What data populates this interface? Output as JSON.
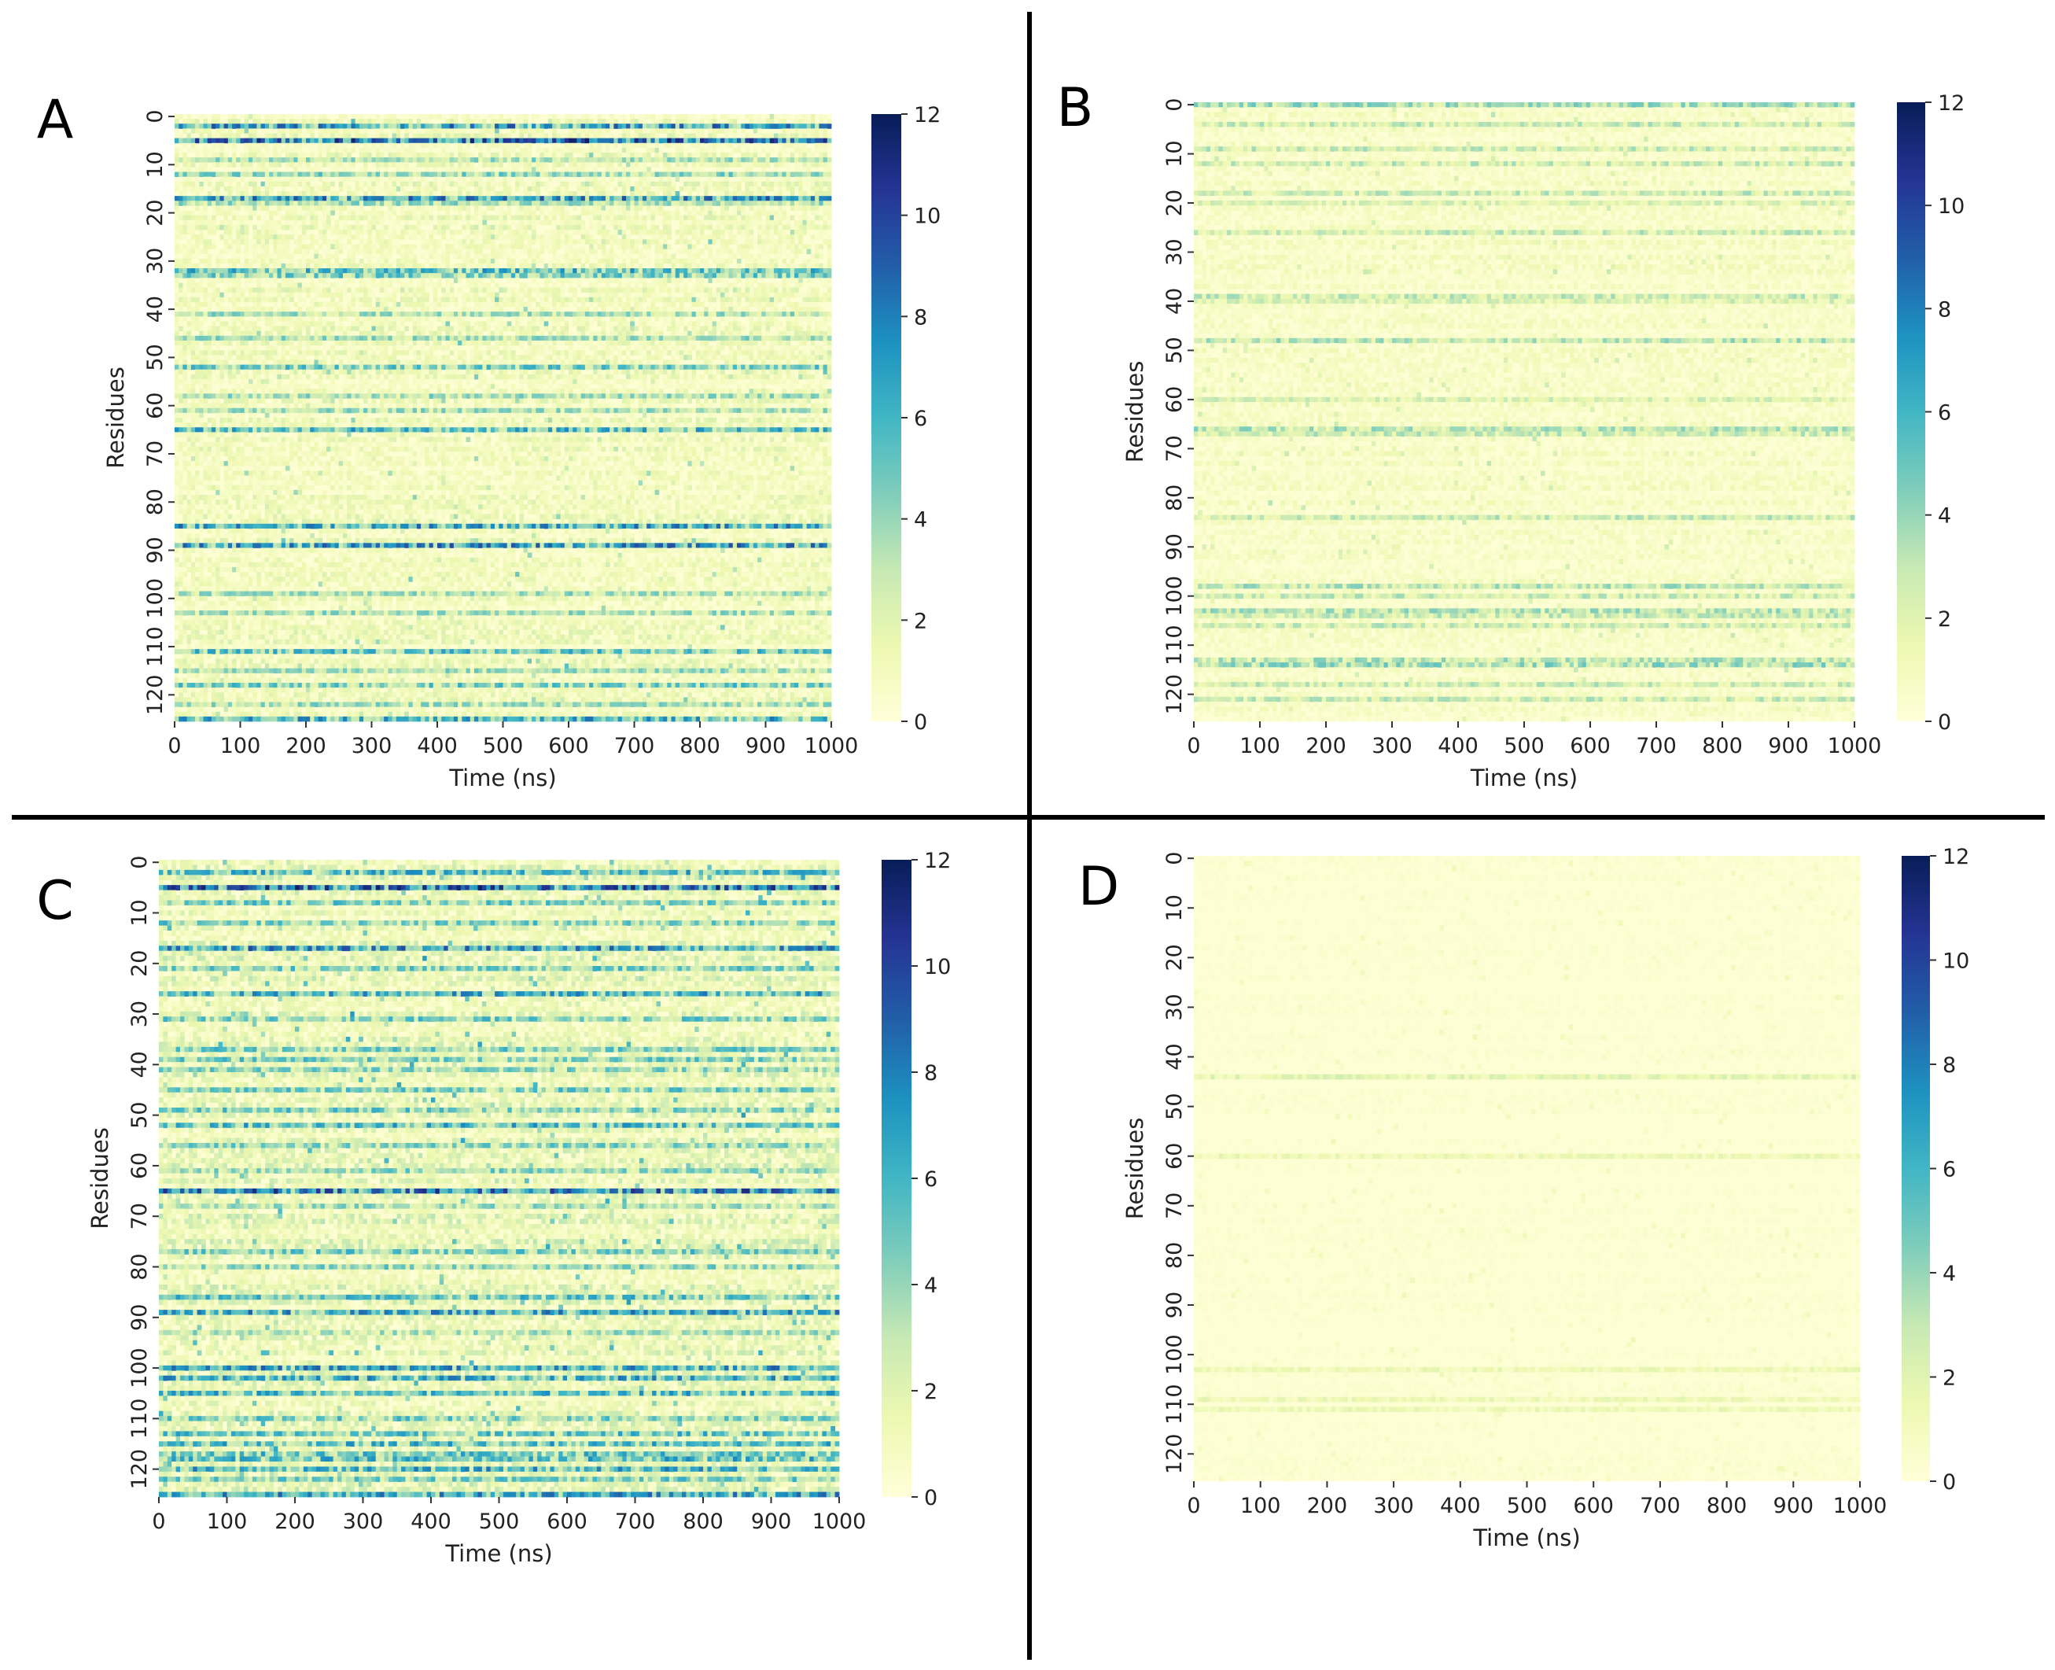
{
  "figure": {
    "colorbar_stops": [
      "#ffffd9",
      "#edf8b1",
      "#c7e9b4",
      "#7fcdbb",
      "#41b6c4",
      "#1d91c0",
      "#225ea8",
      "#253494",
      "#081d58"
    ],
    "divider_color": "#000000"
  },
  "chart_data": [
    {
      "type": "heatmap",
      "panel_label": "A",
      "title": "",
      "xlabel": "Time (ns)",
      "ylabel": "Residues",
      "x_ticks": [
        0,
        100,
        200,
        300,
        400,
        500,
        600,
        700,
        800,
        900,
        1000
      ],
      "y_ticks": [
        0,
        10,
        20,
        30,
        40,
        50,
        60,
        70,
        80,
        90,
        100,
        110,
        120
      ],
      "xlim": [
        0,
        1000
      ],
      "n_residues": 126,
      "colorbar": {
        "ticks": [
          0,
          2,
          4,
          6,
          8,
          10,
          12
        ],
        "range": [
          0,
          12
        ],
        "colormap": "YlGnBu"
      },
      "background_level": 1.1,
      "hot_rows": [
        [
          2,
          7.5
        ],
        [
          5,
          9
        ],
        [
          9,
          4
        ],
        [
          12,
          4.5
        ],
        [
          17,
          7.5
        ],
        [
          18,
          4
        ],
        [
          32,
          6
        ],
        [
          33,
          5
        ],
        [
          41,
          4
        ],
        [
          46,
          4
        ],
        [
          52,
          5
        ],
        [
          58,
          4
        ],
        [
          61,
          4
        ],
        [
          65,
          6
        ],
        [
          85,
          7
        ],
        [
          89,
          7.5
        ],
        [
          99,
          4
        ],
        [
          103,
          4
        ],
        [
          111,
          5.5
        ],
        [
          115,
          4
        ],
        [
          118,
          5
        ],
        [
          122,
          4
        ],
        [
          125,
          6.5
        ]
      ]
    },
    {
      "type": "heatmap",
      "panel_label": "B",
      "title": "",
      "xlabel": "Time (ns)",
      "ylabel": "Residues",
      "x_ticks": [
        0,
        100,
        200,
        300,
        400,
        500,
        600,
        700,
        800,
        900,
        1000
      ],
      "y_ticks": [
        0,
        10,
        20,
        30,
        40,
        50,
        60,
        70,
        80,
        90,
        100,
        110,
        120
      ],
      "xlim": [
        0,
        1000
      ],
      "n_residues": 126,
      "colorbar": {
        "ticks": [
          0,
          2,
          4,
          6,
          8,
          10,
          12
        ],
        "range": [
          0,
          12
        ],
        "colormap": "YlGnBu"
      },
      "background_level": 0.7,
      "hot_rows": [
        [
          0,
          4
        ],
        [
          4,
          3
        ],
        [
          9,
          3
        ],
        [
          12,
          3
        ],
        [
          18,
          3
        ],
        [
          20,
          2.5
        ],
        [
          26,
          3
        ],
        [
          39,
          3
        ],
        [
          40,
          2.5
        ],
        [
          48,
          3.5
        ],
        [
          60,
          2.5
        ],
        [
          66,
          3.5
        ],
        [
          67,
          3
        ],
        [
          84,
          3
        ],
        [
          98,
          3.5
        ],
        [
          100,
          3
        ],
        [
          103,
          3.5
        ],
        [
          104,
          3
        ],
        [
          106,
          3
        ],
        [
          113,
          3.5
        ],
        [
          114,
          4
        ],
        [
          118,
          3
        ],
        [
          121,
          3
        ]
      ]
    },
    {
      "type": "heatmap",
      "panel_label": "C",
      "title": "",
      "xlabel": "Time (ns)",
      "ylabel": "Residues",
      "x_ticks": [
        0,
        100,
        200,
        300,
        400,
        500,
        600,
        700,
        800,
        900,
        1000
      ],
      "y_ticks": [
        0,
        10,
        20,
        30,
        40,
        50,
        60,
        70,
        80,
        90,
        100,
        110,
        120
      ],
      "xlim": [
        0,
        1000
      ],
      "n_residues": 126,
      "colorbar": {
        "ticks": [
          0,
          2,
          4,
          6,
          8,
          10,
          12
        ],
        "range": [
          0,
          12
        ],
        "colormap": "YlGnBu"
      },
      "background_level": 1.5,
      "hot_rows": [
        [
          2,
          6
        ],
        [
          5,
          9
        ],
        [
          8,
          5
        ],
        [
          12,
          5
        ],
        [
          17,
          7.5
        ],
        [
          21,
          5
        ],
        [
          26,
          6.5
        ],
        [
          31,
          5
        ],
        [
          37,
          5
        ],
        [
          39,
          5
        ],
        [
          41,
          4.5
        ],
        [
          45,
          5
        ],
        [
          49,
          5
        ],
        [
          52,
          6
        ],
        [
          56,
          4.5
        ],
        [
          61,
          4.5
        ],
        [
          65,
          8.5
        ],
        [
          68,
          4
        ],
        [
          77,
          5
        ],
        [
          80,
          4.5
        ],
        [
          86,
          5.5
        ],
        [
          89,
          7
        ],
        [
          93,
          4
        ],
        [
          100,
          7
        ],
        [
          102,
          6.5
        ],
        [
          105,
          6
        ],
        [
          110,
          5
        ],
        [
          113,
          5.5
        ],
        [
          115,
          6
        ],
        [
          117,
          5.5
        ],
        [
          118,
          6
        ],
        [
          120,
          6.5
        ],
        [
          122,
          5
        ],
        [
          125,
          7
        ]
      ]
    },
    {
      "type": "heatmap",
      "panel_label": "D",
      "title": "",
      "xlabel": "Time (ns)",
      "ylabel": "Residues",
      "x_ticks": [
        0,
        100,
        200,
        300,
        400,
        500,
        600,
        700,
        800,
        900,
        1000
      ],
      "y_ticks": [
        0,
        10,
        20,
        30,
        40,
        50,
        60,
        70,
        80,
        90,
        100,
        110,
        120
      ],
      "xlim": [
        0,
        1000
      ],
      "n_residues": 126,
      "colorbar": {
        "ticks": [
          0,
          2,
          4,
          6,
          8,
          10,
          12
        ],
        "range": [
          0,
          12
        ],
        "colormap": "YlGnBu"
      },
      "background_level": 0.25,
      "hot_rows": [
        [
          44,
          2
        ],
        [
          60,
          1.5
        ],
        [
          103,
          1.5
        ],
        [
          109,
          1.5
        ],
        [
          111,
          1.5
        ]
      ]
    }
  ]
}
